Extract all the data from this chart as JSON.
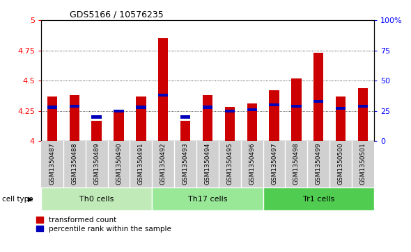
{
  "title": "GDS5166 / 10576235",
  "samples": [
    "GSM1350487",
    "GSM1350488",
    "GSM1350489",
    "GSM1350490",
    "GSM1350491",
    "GSM1350492",
    "GSM1350493",
    "GSM1350494",
    "GSM1350495",
    "GSM1350496",
    "GSM1350497",
    "GSM1350498",
    "GSM1350499",
    "GSM1350500",
    "GSM1350501"
  ],
  "transformed_count": [
    4.37,
    4.38,
    4.17,
    4.25,
    4.37,
    4.85,
    4.17,
    4.38,
    4.28,
    4.31,
    4.42,
    4.52,
    4.73,
    4.37,
    4.44
  ],
  "percentile": [
    4.28,
    4.29,
    4.2,
    4.25,
    4.28,
    4.38,
    4.2,
    4.28,
    4.25,
    4.26,
    4.3,
    4.29,
    4.33,
    4.27,
    4.29
  ],
  "cell_types": [
    {
      "label": "Th0 cells",
      "start": 0,
      "end": 4,
      "color": "#c0eab8"
    },
    {
      "label": "Th17 cells",
      "start": 5,
      "end": 9,
      "color": "#98e898"
    },
    {
      "label": "Tr1 cells",
      "start": 10,
      "end": 14,
      "color": "#50cc50"
    }
  ],
  "ylim": [
    4.0,
    5.0
  ],
  "yticks_left": [
    4.0,
    4.25,
    4.5,
    4.75,
    5.0
  ],
  "ytick_labels_left": [
    "4",
    "4.25",
    "4.5",
    "4.75",
    "5"
  ],
  "yticks_right": [
    4.0,
    4.25,
    4.5,
    4.75,
    5.0
  ],
  "ytick_labels_right": [
    "0",
    "25",
    "50",
    "75",
    "100%"
  ],
  "grid_lines": [
    4.25,
    4.5,
    4.75
  ],
  "bar_color": "#cc0000",
  "percentile_color": "#0000bb",
  "bar_width": 0.45,
  "cell_type_label": "cell type",
  "legend_count_label": "transformed count",
  "legend_percentile_label": "percentile rank within the sample"
}
